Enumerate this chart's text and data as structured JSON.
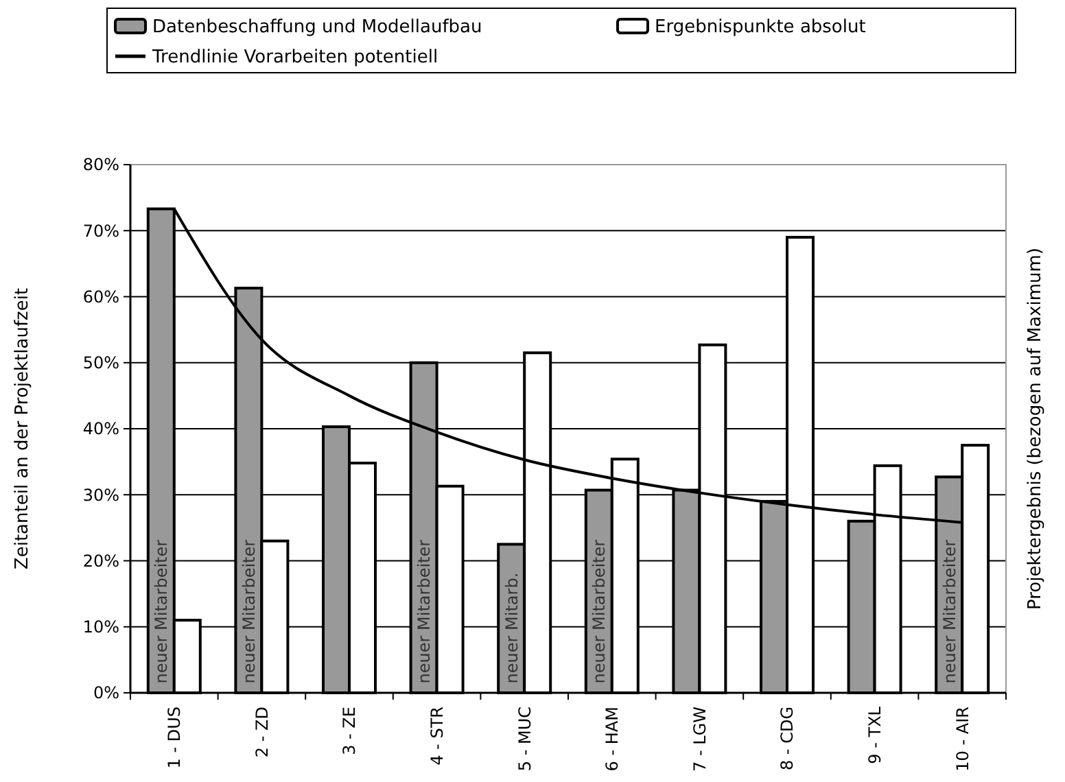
{
  "chart_data": {
    "type": "bar",
    "ylabel": "Zeitanteil an der Projektlaufzeit",
    "y2label": "Projektergebnis (bezogen auf Maximum)",
    "categories": [
      "1 - DUS",
      "2 - ZD",
      "3 - ZE",
      "4 - STR",
      "5 - MUC",
      "6 - HAM",
      "7 - LGW",
      "8 - CDG",
      "9 - TXL",
      "10 - AIR"
    ],
    "series": [
      {
        "name": "Datenbeschaffung und Modellaufbau",
        "color": "#999999",
        "values": [
          73.3,
          61.3,
          40.3,
          50,
          22.5,
          30.7,
          30.7,
          29,
          26,
          32.7
        ]
      },
      {
        "name": "Ergebnispunkte absolut",
        "color": "#ffffff",
        "values": [
          11,
          23,
          34.8,
          31.3,
          51.5,
          35.4,
          52.7,
          69,
          34.4,
          37.5
        ]
      },
      {
        "name": "Trendlinie Vorarbeiten potentiell",
        "type": "line",
        "color": "#000000",
        "values": [
          73.3,
          53.5,
          45,
          39.5,
          35.3,
          32.5,
          30.3,
          28.5,
          27,
          25.8
        ]
      }
    ],
    "ylim": [
      0,
      80
    ],
    "yticks": [
      {
        "value": 0,
        "label": "0%"
      },
      {
        "value": 10,
        "label": "10%"
      },
      {
        "value": 20,
        "label": "20%"
      },
      {
        "value": 30,
        "label": "30%"
      },
      {
        "value": 40,
        "label": "40%"
      },
      {
        "value": 50,
        "label": "50%"
      },
      {
        "value": 60,
        "label": "60%"
      },
      {
        "value": 70,
        "label": "70%"
      },
      {
        "value": 80,
        "label": "80%"
      }
    ],
    "grid": "y",
    "legend": "top",
    "marker": "none",
    "line_style": "solid",
    "annotations": [
      {
        "text": "neuer Mitarbeiter",
        "x": "1 - DUS",
        "y": 1
      },
      {
        "text": "neuer Mitarbeiter",
        "x": "2 - ZD",
        "y": 1
      },
      {
        "text": "neuer Mitarbeiter",
        "x": "4 - STR",
        "y": 1
      },
      {
        "text": "neuer Mitarb.",
        "x": "5 - MUC",
        "y": 1
      },
      {
        "text": "neuer Mitarbeiter",
        "x": "6 - HAM",
        "y": 1
      },
      {
        "text": "neuer Mitarbeiter",
        "x": "10 - AIR",
        "y": 1
      }
    ]
  }
}
